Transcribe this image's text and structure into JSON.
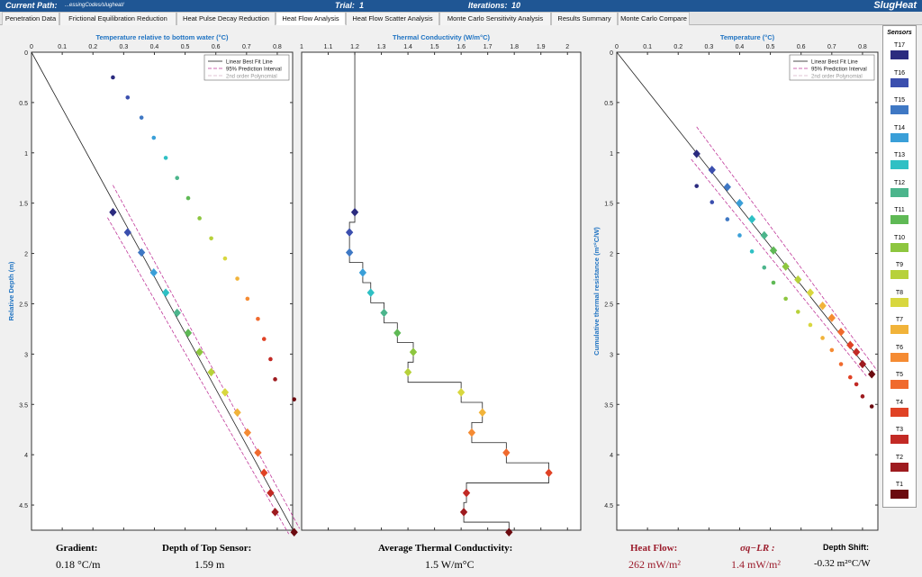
{
  "header": {
    "current_path_label": "Current Path:",
    "current_path_value": "...essingCodes/slugheat/",
    "trial_label": "Trial:",
    "trial_value": "1",
    "iterations_label": "Iterations:",
    "iterations_value": "10",
    "brand": "SlugHeat"
  },
  "tabs": [
    {
      "label": "Penetration Data",
      "active": false
    },
    {
      "label": "Frictional Equilibration Reduction",
      "active": false
    },
    {
      "label": "Heat Pulse Decay Reduction",
      "active": false
    },
    {
      "label": "Heat Flow Analysis",
      "active": true
    },
    {
      "label": "Heat Flow Scatter Analysis",
      "active": false
    },
    {
      "label": "Monte Carlo Sensitivity Analysis",
      "active": false
    },
    {
      "label": "Results Summary",
      "active": false
    },
    {
      "label": "Monte Carlo Compare",
      "active": false
    }
  ],
  "colors": {
    "sensors": [
      "#6b0a0f",
      "#9e1b1f",
      "#c22a25",
      "#e04225",
      "#f06a2e",
      "#f58b33",
      "#f1b33a",
      "#d8d73f",
      "#b7d13a",
      "#8dc63f",
      "#5fb955",
      "#4cb58c",
      "#2fc0c4",
      "#3a9fd8",
      "#3f78c4",
      "#3b4fae",
      "#2b2b7f"
    ],
    "fit_line": "#222222",
    "prediction_interval": "#c0399a",
    "polynomial": "#d8b3c7",
    "tab_bar": "#1f5694",
    "axis_label_blue": "#1f73c2",
    "result_red": "#9b1b2b"
  },
  "sensors_panel": {
    "title": "Sensors",
    "labels": [
      "T17",
      "T16",
      "T15",
      "T14",
      "T13",
      "T12",
      "T11",
      "T10",
      "T9",
      "T8",
      "T7",
      "T6",
      "T5",
      "T4",
      "T3",
      "T2",
      "T1"
    ]
  },
  "chart_data": [
    {
      "type": "scatter",
      "title": "",
      "xlabel": "Temperature relative to bottom water (°C)",
      "ylabel": "Relative Depth (m)",
      "xlim": [
        0,
        0.85
      ],
      "ylim": [
        4.75,
        0
      ],
      "xticks": [
        "0",
        "0.1",
        "0.2",
        "0.3",
        "0.4",
        "0.5",
        "0.6",
        "0.7",
        "0.8"
      ],
      "yticks": [
        "0",
        "0.5",
        "1",
        "1.5",
        "2",
        "2.5",
        "3",
        "3.5",
        "4",
        "4.5"
      ],
      "legend": [
        "Linear Best Fit Line",
        "95% Prediction Interval",
        "2nd order Polynomial"
      ],
      "legend_position": "top-right",
      "series": [
        {
          "marker": "diamond",
          "x": [
            0.265,
            0.313,
            0.358,
            0.398,
            0.437,
            0.474,
            0.51,
            0.547,
            0.585,
            0.63,
            0.67,
            0.703,
            0.737,
            0.757,
            0.778,
            0.793,
            0.855
          ],
          "y": [
            1.59,
            1.79,
            1.99,
            2.19,
            2.39,
            2.59,
            2.79,
            2.98,
            3.18,
            3.38,
            3.58,
            3.78,
            3.98,
            4.18,
            4.38,
            4.57,
            4.77
          ]
        },
        {
          "marker": "dot",
          "x": [
            0.265,
            0.313,
            0.358,
            0.398,
            0.437,
            0.474,
            0.51,
            0.547,
            0.585,
            0.63,
            0.67,
            0.703,
            0.737,
            0.757,
            0.778,
            0.793,
            0.855
          ],
          "y": [
            0.25,
            0.45,
            0.65,
            0.85,
            1.05,
            1.25,
            1.45,
            1.65,
            1.85,
            2.05,
            2.25,
            2.45,
            2.65,
            2.85,
            3.05,
            3.25,
            3.45
          ]
        }
      ],
      "fit_line": {
        "x": [
          0,
          0.855
        ],
        "y": [
          0,
          4.77
        ]
      }
    },
    {
      "type": "line",
      "title": "",
      "xlabel": "Thermal Conductivity (W/m°C)",
      "ylabel": "",
      "xlim": [
        1,
        2.05
      ],
      "ylim": [
        4.75,
        0
      ],
      "xticks": [
        "1",
        "1.1",
        "1.2",
        "1.3",
        "1.4",
        "1.5",
        "1.6",
        "1.7",
        "1.8",
        "1.9",
        "2"
      ],
      "series": [
        {
          "marker": "diamond",
          "x": [
            1.2,
            1.18,
            1.18,
            1.23,
            1.26,
            1.31,
            1.36,
            1.42,
            1.4,
            1.6,
            1.68,
            1.64,
            1.77,
            1.93,
            1.62,
            1.61,
            1.78
          ],
          "y": [
            1.59,
            1.79,
            1.99,
            2.19,
            2.39,
            2.59,
            2.79,
            2.98,
            3.18,
            3.38,
            3.58,
            3.78,
            3.98,
            4.18,
            4.38,
            4.57,
            4.77
          ]
        }
      ],
      "profile_start_value": 1.2
    },
    {
      "type": "scatter",
      "title": "",
      "xlabel": "Temperature (°C)",
      "ylabel": "Cumulative thermal resistance (m²°C/W)",
      "xlim": [
        0,
        0.85
      ],
      "ylim": [
        4.75,
        0
      ],
      "xticks": [
        "0",
        "0.1",
        "0.2",
        "0.3",
        "0.4",
        "0.5",
        "0.6",
        "0.7",
        "0.8"
      ],
      "yticks": [
        "0",
        "0.5",
        "1",
        "1.5",
        "2",
        "2.5",
        "3",
        "3.5",
        "4",
        "4.5"
      ],
      "legend": [
        "Linear Best Fit Line",
        "95% Prediction Interval",
        "2nd order Polynomial"
      ],
      "legend_position": "top-right",
      "series": [
        {
          "marker": "diamond",
          "x": [
            0.26,
            0.31,
            0.36,
            0.4,
            0.44,
            0.48,
            0.51,
            0.55,
            0.59,
            0.63,
            0.67,
            0.7,
            0.73,
            0.76,
            0.78,
            0.8,
            0.83
          ],
          "y": [
            1.01,
            1.17,
            1.34,
            1.5,
            1.66,
            1.82,
            1.97,
            2.13,
            2.26,
            2.39,
            2.52,
            2.64,
            2.78,
            2.91,
            2.98,
            3.1,
            3.2
          ]
        },
        {
          "marker": "dot",
          "x": [
            0.26,
            0.31,
            0.36,
            0.4,
            0.44,
            0.48,
            0.51,
            0.55,
            0.59,
            0.63,
            0.67,
            0.7,
            0.73,
            0.76,
            0.78,
            0.8,
            0.83
          ],
          "y": [
            1.33,
            1.49,
            1.66,
            1.82,
            1.98,
            2.14,
            2.29,
            2.45,
            2.58,
            2.71,
            2.84,
            2.96,
            3.1,
            3.23,
            3.3,
            3.42,
            3.52
          ]
        }
      ],
      "fit_line": {
        "x": [
          0,
          0.83
        ],
        "y": [
          0,
          3.2
        ]
      }
    }
  ],
  "results": {
    "gradient_label": "Gradient:",
    "gradient_value": "0.18 °C/m",
    "top_sensor_label": "Depth of Top Sensor:",
    "top_sensor_value": "1.59 m",
    "conductivity_label": "Average Thermal Conductivity:",
    "conductivity_value": "1.5 W/m°C",
    "heat_flow_label": "Heat Flow:",
    "heat_flow_value": "262 mW/m²",
    "sigma_label": "σq−LR :",
    "sigma_value": "1.4 mW/m²",
    "depth_shift_label": "Depth Shift:",
    "depth_shift_value": "-0.32 m²°C/W"
  }
}
